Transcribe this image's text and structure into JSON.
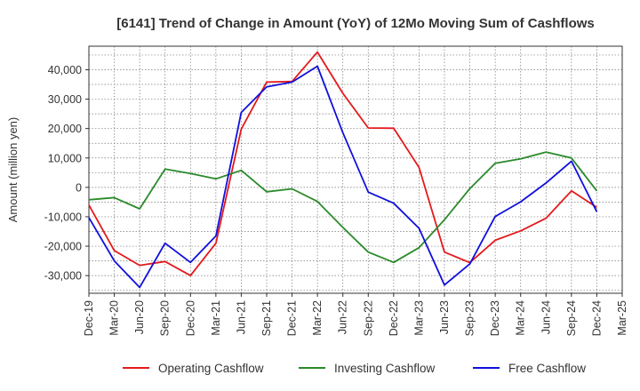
{
  "chart_data": {
    "type": "line",
    "title": "[6141]  Trend of Change in Amount (YoY) of 12Mo Moving Sum of Cashflows",
    "xlabel": "",
    "ylabel": "Amount (million yen)",
    "categories": [
      "Dec-19",
      "Mar-20",
      "Jun-20",
      "Sep-20",
      "Dec-20",
      "Mar-21",
      "Jun-21",
      "Sep-21",
      "Dec-21",
      "Mar-22",
      "Jun-22",
      "Sep-22",
      "Dec-22",
      "Mar-23",
      "Jun-23",
      "Sep-23",
      "Dec-23",
      "Mar-24",
      "Jun-24",
      "Sep-24",
      "Dec-24",
      "Mar-25"
    ],
    "ylim": [
      -36000,
      48000
    ],
    "yticks": [
      -30000,
      -20000,
      -10000,
      0,
      10000,
      20000,
      30000,
      40000
    ],
    "ytick_labels": [
      "-30,000",
      "-20,000",
      "-10,000",
      "0",
      "10,000",
      "20,000",
      "30,000",
      "40,000"
    ],
    "grid": true,
    "legend_position": "bottom",
    "series": [
      {
        "name": "Operating Cashflow",
        "color": "#e31a1c",
        "values": [
          -6000,
          -21500,
          -26500,
          -25200,
          -30000,
          -19000,
          19800,
          35800,
          36000,
          46000,
          32000,
          20200,
          20100,
          6800,
          -22000,
          -25600,
          -18000,
          -14800,
          -10500,
          -1200,
          -6800,
          null
        ]
      },
      {
        "name": "Investing Cashflow",
        "color": "#2a8a2a",
        "values": [
          -4200,
          -3500,
          -7300,
          6200,
          4700,
          2900,
          5800,
          -1500,
          -500,
          -4800,
          -13600,
          -22000,
          -25500,
          -20500,
          -11000,
          -400,
          8200,
          9700,
          12000,
          10000,
          -1200,
          null
        ]
      },
      {
        "name": "Free Cashflow",
        "color": "#1010dd",
        "values": [
          -10300,
          -25000,
          -34000,
          -19000,
          -25500,
          -16500,
          25500,
          34200,
          35800,
          41200,
          18600,
          -1600,
          -5400,
          -13900,
          -33200,
          -26000,
          -9900,
          -4900,
          1500,
          8900,
          -8300,
          null
        ]
      }
    ]
  }
}
